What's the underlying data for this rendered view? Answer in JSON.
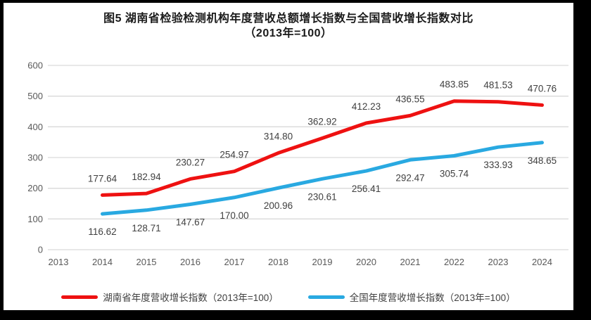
{
  "title": {
    "line1": "图5 湖南省检验检测机构年度营收总额增长指数与全国营收增长指数对比",
    "line2": "（2013年=100）"
  },
  "chart_data": {
    "type": "line",
    "title": "图5 湖南省检验检测机构年度营收总额增长指数与全国营收增长指数对比（2013年=100）",
    "xlabel": "",
    "ylabel": "",
    "categories": [
      "2013",
      "2014",
      "2015",
      "2016",
      "2017",
      "2018",
      "2019",
      "2020",
      "2021",
      "2022",
      "2023",
      "2024"
    ],
    "series": [
      {
        "name": "湖南省年度营收增长指数（2013年=100）",
        "color": "#ee1111",
        "label_position": "above",
        "values": [
          null,
          177.64,
          182.94,
          230.27,
          254.97,
          314.8,
          362.92,
          412.23,
          436.55,
          483.85,
          481.53,
          470.76
        ],
        "labels": [
          null,
          "177.64",
          "182.94",
          "230.27",
          "254.97",
          "314.80",
          "362.92",
          "412.23",
          "436.55",
          "483.85",
          "481.53",
          "470.76"
        ]
      },
      {
        "name": "全国年度营收增长指数（2013年=100）",
        "color": "#29a9e1",
        "label_position": "below",
        "values": [
          null,
          116.62,
          128.71,
          147.67,
          170.0,
          200.96,
          230.61,
          256.41,
          292.47,
          305.74,
          333.93,
          348.65
        ],
        "labels": [
          null,
          "116.62",
          "128.71",
          "147.67",
          "170.00",
          "200.96",
          "230.61",
          "256.41",
          "292.47",
          "305.74",
          "333.93",
          "348.65"
        ]
      }
    ],
    "ylim": [
      0,
      600
    ],
    "yticks": [
      0,
      100,
      200,
      300,
      400,
      500,
      600
    ],
    "grid": true,
    "legend_position": "bottom"
  },
  "colors": {
    "frame_bg": "#000000",
    "canvas_bg": "#ffffff",
    "grid": "#d9d9d9",
    "axis_text": "#595959",
    "data_label": "#404040",
    "title_text": "#1a1a1a"
  }
}
